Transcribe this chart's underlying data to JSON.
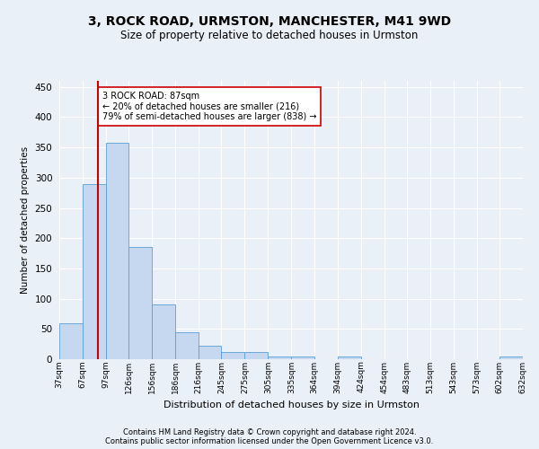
{
  "title": "3, ROCK ROAD, URMSTON, MANCHESTER, M41 9WD",
  "subtitle": "Size of property relative to detached houses in Urmston",
  "xlabel": "Distribution of detached houses by size in Urmston",
  "ylabel": "Number of detached properties",
  "footnote1": "Contains HM Land Registry data © Crown copyright and database right 2024.",
  "footnote2": "Contains public sector information licensed under the Open Government Licence v3.0.",
  "bins": [
    37,
    67,
    97,
    126,
    156,
    186,
    216,
    245,
    275,
    305,
    335,
    364,
    394,
    424,
    454,
    483,
    513,
    543,
    573,
    602,
    632
  ],
  "bin_labels": [
    "37sqm",
    "67sqm",
    "97sqm",
    "126sqm",
    "156sqm",
    "186sqm",
    "216sqm",
    "245sqm",
    "275sqm",
    "305sqm",
    "335sqm",
    "364sqm",
    "394sqm",
    "424sqm",
    "454sqm",
    "483sqm",
    "513sqm",
    "543sqm",
    "573sqm",
    "602sqm",
    "632sqm"
  ],
  "counts": [
    60,
    290,
    357,
    185,
    90,
    45,
    22,
    12,
    12,
    5,
    5,
    0,
    5,
    0,
    0,
    0,
    0,
    0,
    0,
    5,
    0
  ],
  "bar_color": "#c5d8f0",
  "bar_edge_color": "#5a9fd4",
  "property_size": 87,
  "red_line_color": "#cc0000",
  "annotation_text": "3 ROCK ROAD: 87sqm\n← 20% of detached houses are smaller (216)\n79% of semi-detached houses are larger (838) →",
  "annotation_box_color": "#ffffff",
  "annotation_box_edge": "#cc0000",
  "ylim": [
    0,
    460
  ],
  "yticks": [
    0,
    50,
    100,
    150,
    200,
    250,
    300,
    350,
    400,
    450
  ],
  "background_color": "#eaf0f8",
  "plot_background": "#eaf0f8",
  "grid_color": "#ffffff",
  "title_fontsize": 10,
  "subtitle_fontsize": 8.5
}
